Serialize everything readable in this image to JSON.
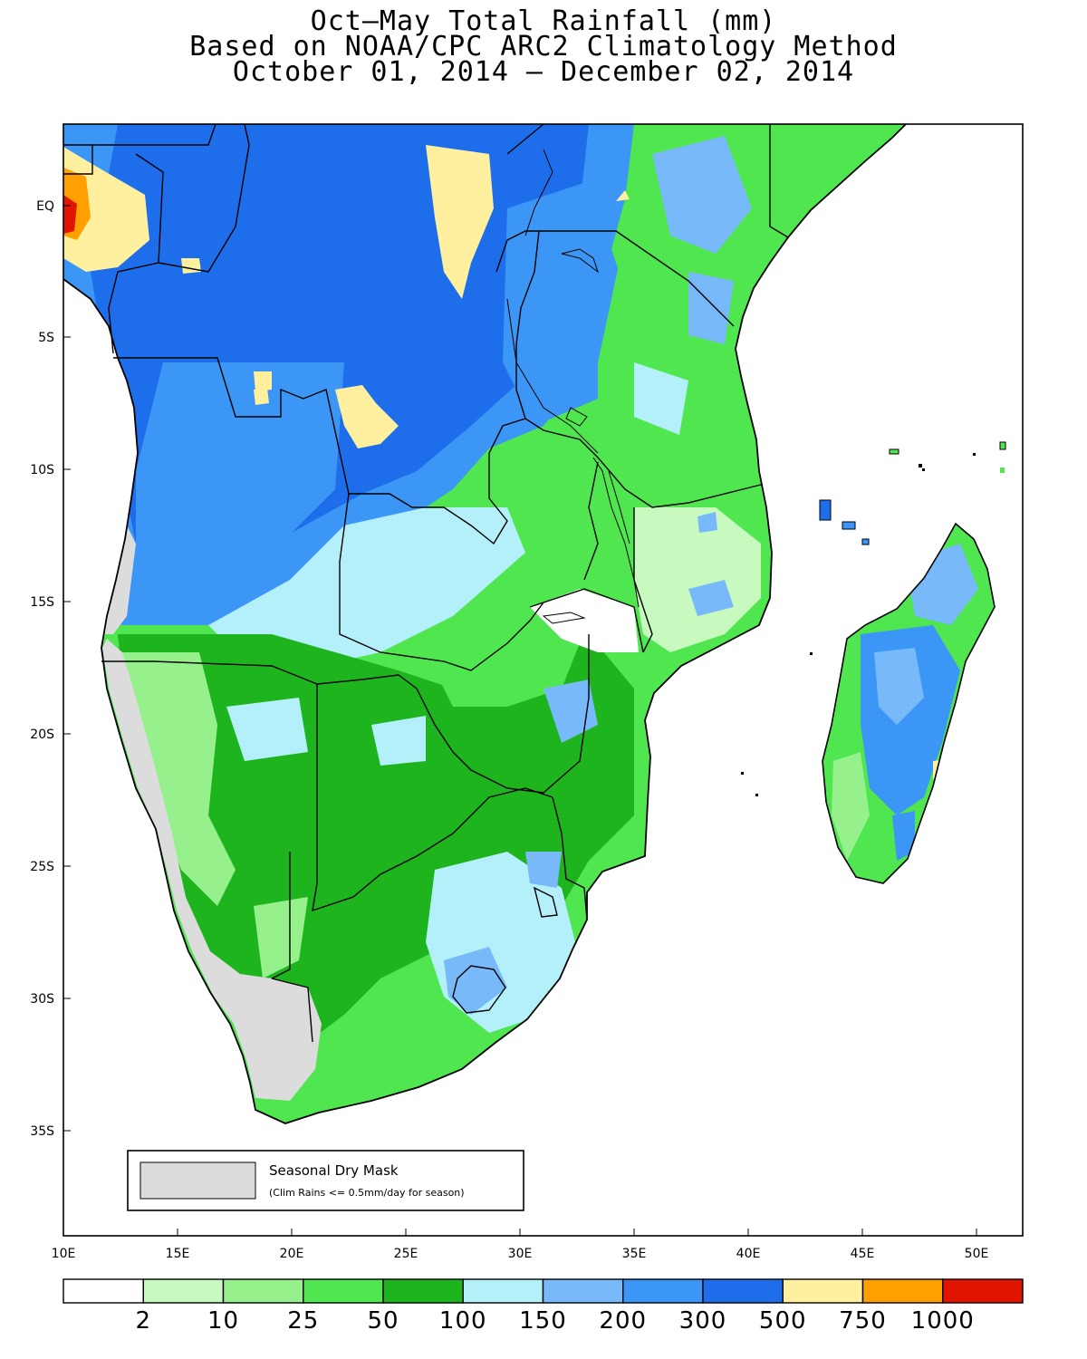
{
  "title": {
    "line1": "Oct–May Total Rainfall (mm)",
    "line2": "Based on NOAA/CPC ARC2 Climatology Method",
    "line3": "October 01, 2014 – December 02, 2014"
  },
  "axes": {
    "lat_labels": [
      "EQ",
      "5S",
      "10S",
      "15S",
      "20S",
      "25S",
      "30S",
      "35S"
    ],
    "lon_labels": [
      "10E",
      "15E",
      "20E",
      "25E",
      "30E",
      "35E",
      "40E",
      "45E",
      "50E"
    ]
  },
  "legend": {
    "dry_mask_label": "Seasonal Dry Mask",
    "dry_mask_note": "(Clim Rains <= 0.5mm/day for season)",
    "dry_mask_color": "#dcdcdc"
  },
  "colorbar": {
    "colors": [
      "#ffffff",
      "#c8fac0",
      "#96f08c",
      "#50e650",
      "#1eb41e",
      "#b4f0fa",
      "#78b9fa",
      "#3c96f5",
      "#1e6eeb",
      "#fff0a0",
      "#ffa000",
      "#e11400"
    ],
    "labels": [
      "2",
      "10",
      "25",
      "50",
      "100",
      "150",
      "200",
      "300",
      "500",
      "750",
      "1000"
    ]
  }
}
